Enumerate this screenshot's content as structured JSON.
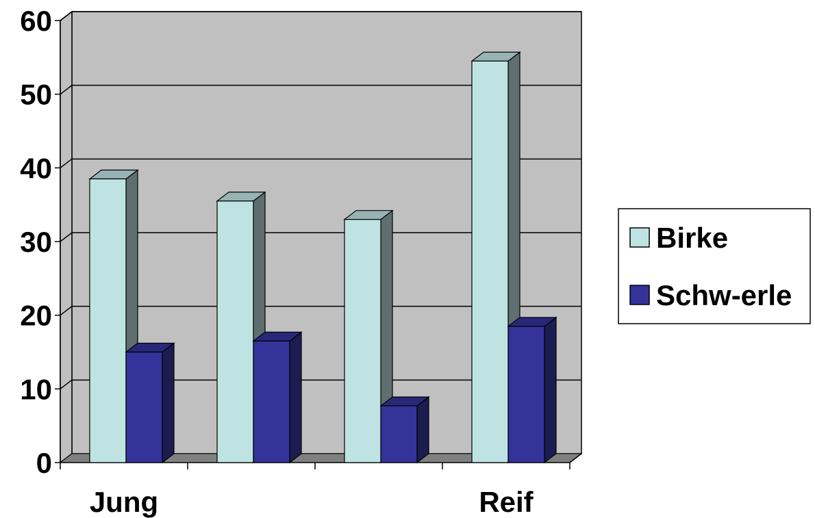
{
  "chart_data": {
    "type": "bar",
    "categories": [
      "Jung",
      "",
      "",
      "Reif"
    ],
    "series": [
      {
        "name": "Birke",
        "values": [
          38.5,
          35.5,
          33,
          54.5
        ]
      },
      {
        "name": "Schw-erle",
        "values": [
          15,
          16.5,
          7.7,
          18.5
        ]
      }
    ],
    "ylim": [
      0,
      60
    ],
    "yticks": [
      0,
      10,
      20,
      30,
      40,
      50,
      60
    ],
    "grid": true,
    "legend": "right",
    "three_d": true
  },
  "colors": {
    "background_wall": "#c0c0c0",
    "floor": "#808080",
    "birke_front": "#bfe3e3",
    "birke_side": "#5f6f70",
    "birke_top": "#97b3b3",
    "erle_front": "#333399",
    "erle_side": "#1c1c50",
    "erle_top": "#28287a"
  }
}
